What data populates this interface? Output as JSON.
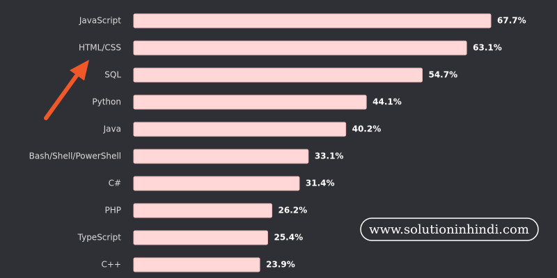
{
  "chart_data": {
    "type": "bar",
    "orientation": "horizontal",
    "categories": [
      "JavaScript",
      "HTML/CSS",
      "SQL",
      "Python",
      "Java",
      "Bash/Shell/PowerShell",
      "C#",
      "PHP",
      "TypeScript",
      "C++"
    ],
    "values": [
      67.7,
      63.1,
      54.7,
      44.1,
      40.2,
      33.1,
      31.4,
      26.2,
      25.4,
      23.9
    ],
    "value_labels": [
      "67.7%",
      "63.1%",
      "54.7%",
      "44.1%",
      "40.2%",
      "33.1%",
      "31.4%",
      "26.2%",
      "25.4%",
      "23.9%"
    ],
    "color": "#ffd7d7",
    "watermark": "www.solutioninhindi.com"
  }
}
